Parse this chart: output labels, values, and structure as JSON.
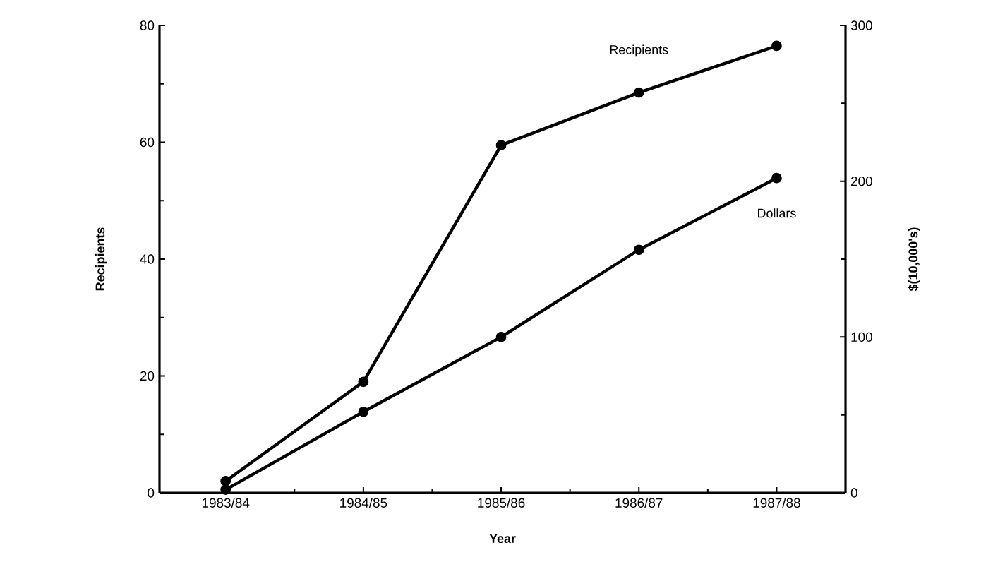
{
  "chart_data": {
    "type": "line",
    "xlabel": "Year",
    "ylabel": "Recipients",
    "y2label": "$(10,000's)",
    "categories": [
      "1983/84",
      "1984/85",
      "1985/86",
      "1986/87",
      "1987/88"
    ],
    "series": [
      {
        "name": "Recipients",
        "color": "#000000",
        "values": [
          2,
          19,
          59.5,
          68.5,
          76.5
        ]
      },
      {
        "name": "Dollars",
        "color": "#000000",
        "axis": "y2",
        "values": [
          2,
          52,
          100,
          156,
          202
        ]
      }
    ],
    "ylim": [
      0,
      80
    ],
    "yticks": [
      0,
      20,
      40,
      60,
      80
    ],
    "y2lim": [
      0,
      300
    ],
    "y2ticks": [
      0,
      100,
      200,
      300
    ],
    "marker": "circle",
    "line_style": "solid",
    "grid": false
  }
}
